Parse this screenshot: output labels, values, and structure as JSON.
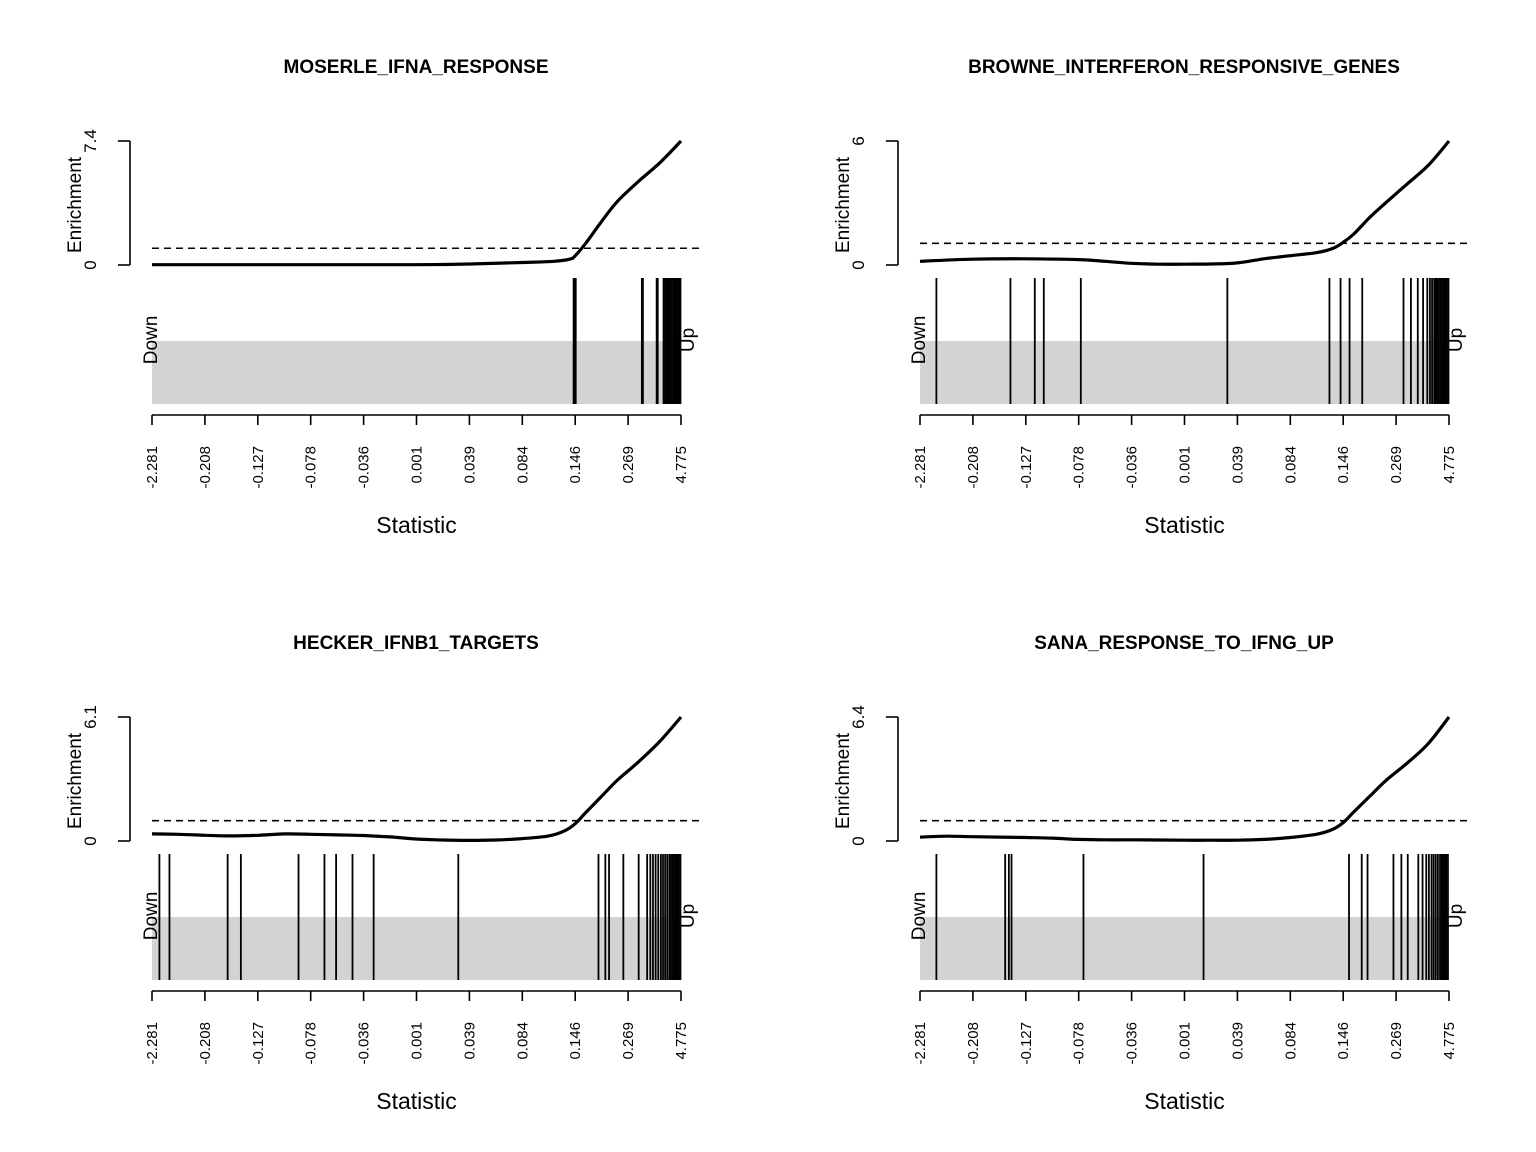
{
  "chart_data": [
    {
      "type": "line",
      "title": "MOSERLE_IFNA_RESPONSE",
      "ylabel": "Enrichment",
      "xlabel": "Statistic",
      "ylim": [
        0,
        7.4
      ],
      "y_ticks": [
        "0",
        "7.4"
      ],
      "x_tick_labels": [
        "-2.281",
        "-0.208",
        "-0.127",
        "-0.078",
        "-0.036",
        "0.001",
        "0.039",
        "0.084",
        "0.146",
        "0.269",
        "4.775"
      ],
      "down_label": "Down",
      "up_label": "Up",
      "threshold": 1.0,
      "curve": {
        "x": [
          0.0,
          0.1,
          0.2,
          0.3,
          0.4,
          0.5,
          0.55,
          0.6,
          0.7,
          0.76,
          0.79,
          0.8,
          0.82,
          0.85,
          0.88,
          0.92,
          0.96,
          1.0
        ],
        "y": [
          0.02,
          0.02,
          0.02,
          0.02,
          0.02,
          0.02,
          0.03,
          0.06,
          0.15,
          0.22,
          0.35,
          0.55,
          1.3,
          2.6,
          3.8,
          5.0,
          6.1,
          7.4
        ]
      },
      "gene_positions": [
        0.797,
        0.799,
        0.801,
        0.926,
        0.928,
        0.954,
        0.956,
        0.967,
        0.97,
        0.973,
        0.976,
        0.979,
        0.982,
        0.985,
        0.987,
        0.989,
        0.991,
        0.993,
        0.995,
        0.997,
        0.999
      ]
    },
    {
      "type": "line",
      "title": "BROWNE_INTERFERON_RESPONSIVE_GENES",
      "ylabel": "Enrichment",
      "xlabel": "Statistic",
      "ylim": [
        0,
        6
      ],
      "y_ticks": [
        "0",
        "6"
      ],
      "x_tick_labels": [
        "-2.281",
        "-0.208",
        "-0.127",
        "-0.078",
        "-0.036",
        "0.001",
        "0.039",
        "0.084",
        "0.146",
        "0.269",
        "4.775"
      ],
      "down_label": "Down",
      "up_label": "Up",
      "threshold": 1.05,
      "curve": {
        "x": [
          0.0,
          0.1,
          0.2,
          0.3,
          0.35,
          0.4,
          0.45,
          0.5,
          0.55,
          0.6,
          0.65,
          0.7,
          0.75,
          0.78,
          0.8,
          0.82,
          0.85,
          0.88,
          0.92,
          0.96,
          1.0
        ],
        "y": [
          0.18,
          0.28,
          0.3,
          0.26,
          0.18,
          0.08,
          0.04,
          0.04,
          0.05,
          0.1,
          0.3,
          0.45,
          0.6,
          0.8,
          1.1,
          1.5,
          2.3,
          3.0,
          3.9,
          4.8,
          6.0
        ]
      },
      "gene_positions": [
        0.031,
        0.171,
        0.217,
        0.234,
        0.304,
        0.581,
        0.774,
        0.795,
        0.812,
        0.836,
        0.914,
        0.928,
        0.941,
        0.951,
        0.959,
        0.964,
        0.968,
        0.972,
        0.975,
        0.978,
        0.981,
        0.984,
        0.987,
        0.99,
        0.993,
        0.996,
        0.999
      ]
    },
    {
      "type": "line",
      "title": "HECKER_IFNB1_TARGETS",
      "ylabel": "Enrichment",
      "xlabel": "Statistic",
      "ylim": [
        0,
        6.1
      ],
      "y_ticks": [
        "0",
        "6.1"
      ],
      "x_tick_labels": [
        "-2.281",
        "-0.208",
        "-0.127",
        "-0.078",
        "-0.036",
        "0.001",
        "0.039",
        "0.084",
        "0.146",
        "0.269",
        "4.775"
      ],
      "down_label": "Down",
      "up_label": "Up",
      "threshold": 1.0,
      "curve": {
        "x": [
          0.0,
          0.05,
          0.1,
          0.15,
          0.2,
          0.25,
          0.3,
          0.35,
          0.4,
          0.45,
          0.5,
          0.55,
          0.6,
          0.65,
          0.7,
          0.75,
          0.78,
          0.8,
          0.82,
          0.85,
          0.88,
          0.92,
          0.96,
          1.0
        ],
        "y": [
          0.35,
          0.33,
          0.28,
          0.25,
          0.28,
          0.35,
          0.33,
          0.3,
          0.27,
          0.2,
          0.1,
          0.05,
          0.03,
          0.05,
          0.12,
          0.25,
          0.5,
          0.85,
          1.4,
          2.2,
          3.0,
          3.9,
          4.9,
          6.1
        ]
      },
      "gene_positions": [
        0.014,
        0.033,
        0.143,
        0.168,
        0.277,
        0.326,
        0.348,
        0.379,
        0.419,
        0.579,
        0.844,
        0.857,
        0.864,
        0.891,
        0.92,
        0.936,
        0.942,
        0.947,
        0.952,
        0.957,
        0.962,
        0.966,
        0.97,
        0.974,
        0.978,
        0.981,
        0.984,
        0.987,
        0.99,
        0.993,
        0.996,
        0.999
      ]
    },
    {
      "type": "line",
      "title": "SANA_RESPONSE_TO_IFNG_UP",
      "ylabel": "Enrichment",
      "xlabel": "Statistic",
      "ylim": [
        0,
        6.4
      ],
      "y_ticks": [
        "0",
        "6.4"
      ],
      "x_tick_labels": [
        "-2.281",
        "-0.208",
        "-0.127",
        "-0.078",
        "-0.036",
        "0.001",
        "0.039",
        "0.084",
        "0.146",
        "0.269",
        "4.775"
      ],
      "down_label": "Down",
      "up_label": "Up",
      "threshold": 1.05,
      "curve": {
        "x": [
          0.0,
          0.05,
          0.1,
          0.15,
          0.2,
          0.25,
          0.3,
          0.35,
          0.4,
          0.45,
          0.5,
          0.55,
          0.6,
          0.65,
          0.7,
          0.75,
          0.78,
          0.8,
          0.82,
          0.85,
          0.88,
          0.92,
          0.96,
          1.0
        ],
        "y": [
          0.2,
          0.25,
          0.22,
          0.2,
          0.18,
          0.15,
          0.08,
          0.06,
          0.06,
          0.05,
          0.04,
          0.04,
          0.04,
          0.08,
          0.18,
          0.35,
          0.6,
          0.95,
          1.5,
          2.3,
          3.1,
          4.0,
          5.0,
          6.4
        ]
      },
      "gene_positions": [
        0.031,
        0.161,
        0.168,
        0.173,
        0.309,
        0.536,
        0.811,
        0.835,
        0.846,
        0.895,
        0.91,
        0.922,
        0.942,
        0.95,
        0.957,
        0.962,
        0.967,
        0.971,
        0.975,
        0.979,
        0.983,
        0.986,
        0.989,
        0.992,
        0.995,
        0.998
      ]
    }
  ]
}
